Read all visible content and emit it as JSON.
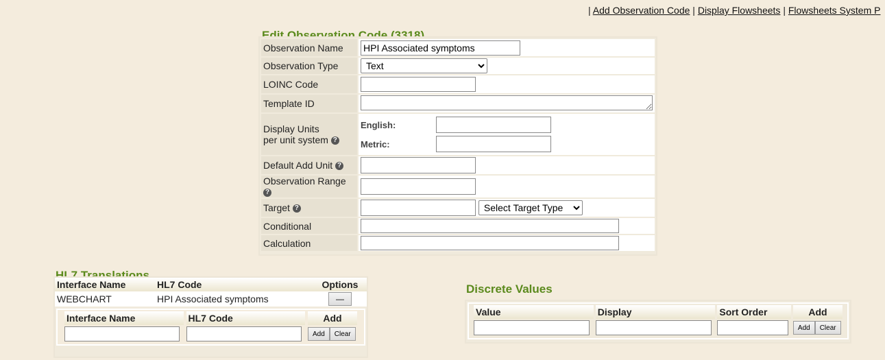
{
  "top_links": [
    "Add Observation Code",
    "Display Flowsheets",
    "Flowsheets System P"
  ],
  "edit": {
    "title": "Edit Observation Code (3318)",
    "observation_name_label": "Observation Name",
    "observation_name_value": "HPI Associated symptoms",
    "observation_type_label": "Observation Type",
    "observation_type_value": "Text",
    "loinc_label": "LOINC Code",
    "loinc_value": "",
    "template_label": "Template ID",
    "template_value": "",
    "units_label_1": "Display Units",
    "units_label_2": "per unit system",
    "english_label": "English:",
    "metric_label": "Metric:",
    "default_unit_label": "Default Add Unit",
    "range_label": "Observation Range",
    "target_label": "Target",
    "target_type_value": "Select Target Type",
    "conditional_label": "Conditional",
    "calculation_label": "Calculation"
  },
  "hl7": {
    "title": "HL7 Translations",
    "headers": [
      "Interface Name",
      "HL7 Code",
      "Options"
    ],
    "rows": [
      {
        "interface": "WEBCHART",
        "code": "HPI Associated symptoms",
        "remove_label": "—"
      }
    ],
    "add_headers": [
      "Interface Name",
      "HL7 Code",
      "Add"
    ],
    "add_label": "Add",
    "clear_label": "Clear"
  },
  "discrete": {
    "title": "Discrete Values",
    "headers": [
      "Value",
      "Display",
      "Sort Order",
      "Add"
    ],
    "add_label": "Add",
    "clear_label": "Clear"
  },
  "colors": {
    "title_green": "#5b8a1d",
    "background": "#f4ecdd",
    "label_cell": "#e7e1d2"
  }
}
